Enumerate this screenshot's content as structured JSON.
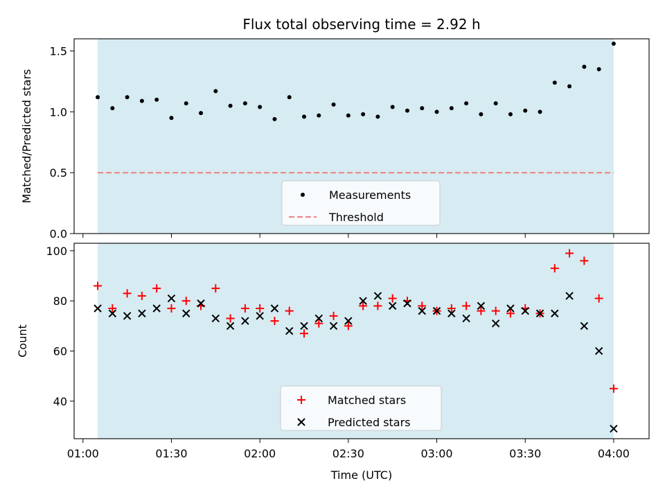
{
  "chart_data": [
    {
      "type": "scatter",
      "title": "Flux total observing time = 2.92 h",
      "ylabel": "Matched/Predicted stars",
      "xlabel": "",
      "ylim": [
        0,
        1.6
      ],
      "yticks": [
        0.0,
        0.5,
        1.0,
        1.5
      ],
      "ytick_labels": [
        "0.0",
        "0.5",
        "1.0",
        "1.5"
      ],
      "shaded_span": [
        "01:05",
        "04:00"
      ],
      "shaded_color": "#add8e6",
      "legend": {
        "location": "lower-center",
        "entries": [
          "Measurements",
          "Threshold"
        ]
      },
      "threshold": {
        "name": "Threshold",
        "value": 0.5,
        "color": "#f08080",
        "style": "dashed"
      },
      "series": [
        {
          "name": "Measurements",
          "color": "#000000",
          "x": [
            "01:05",
            "01:10",
            "01:15",
            "01:20",
            "01:25",
            "01:30",
            "01:35",
            "01:40",
            "01:45",
            "01:50",
            "01:55",
            "02:00",
            "02:05",
            "02:10",
            "02:15",
            "02:20",
            "02:25",
            "02:30",
            "02:35",
            "02:40",
            "02:45",
            "02:50",
            "02:55",
            "03:00",
            "03:05",
            "03:10",
            "03:15",
            "03:20",
            "03:25",
            "03:30",
            "03:35",
            "03:40",
            "03:45",
            "03:50",
            "03:55",
            "04:00"
          ],
          "y": [
            1.12,
            1.03,
            1.12,
            1.09,
            1.1,
            0.95,
            1.07,
            0.99,
            1.17,
            1.05,
            1.07,
            1.04,
            0.94,
            1.12,
            0.96,
            0.97,
            1.06,
            0.97,
            0.98,
            0.96,
            1.04,
            1.01,
            1.03,
            1.0,
            1.03,
            1.07,
            0.98,
            1.07,
            0.98,
            1.01,
            1.0,
            1.24,
            1.21,
            1.37,
            1.35,
            1.56
          ]
        }
      ]
    },
    {
      "type": "scatter",
      "title": "",
      "ylabel": "Count",
      "xlabel": "Time (UTC)",
      "ylim": [
        25,
        103
      ],
      "yticks": [
        40,
        60,
        80,
        100
      ],
      "ytick_labels": [
        "40",
        "60",
        "80",
        "100"
      ],
      "xticks": [
        "01:00",
        "01:30",
        "02:00",
        "02:30",
        "03:00",
        "03:30",
        "04:00"
      ],
      "shaded_span": [
        "01:05",
        "04:00"
      ],
      "shaded_color": "#add8e6",
      "legend": {
        "location": "lower-center",
        "entries": [
          "Matched stars",
          "Predicted stars"
        ]
      },
      "series": [
        {
          "name": "Matched stars",
          "marker": "plus",
          "color": "#ff0000",
          "x": [
            "01:05",
            "01:10",
            "01:15",
            "01:20",
            "01:25",
            "01:30",
            "01:35",
            "01:40",
            "01:45",
            "01:50",
            "01:55",
            "02:00",
            "02:05",
            "02:10",
            "02:15",
            "02:20",
            "02:25",
            "02:30",
            "02:35",
            "02:40",
            "02:45",
            "02:50",
            "02:55",
            "03:00",
            "03:05",
            "03:10",
            "03:15",
            "03:20",
            "03:25",
            "03:30",
            "03:35",
            "03:40",
            "03:45",
            "03:50",
            "03:55",
            "04:00"
          ],
          "y": [
            86,
            77,
            83,
            82,
            85,
            77,
            80,
            78,
            85,
            73,
            77,
            77,
            72,
            76,
            67,
            71,
            74,
            70,
            78,
            78,
            81,
            80,
            78,
            76,
            77,
            78,
            76,
            76,
            75,
            77,
            75,
            93,
            99,
            96,
            81,
            45
          ]
        },
        {
          "name": "Predicted stars",
          "marker": "x",
          "color": "#000000",
          "x": [
            "01:05",
            "01:10",
            "01:15",
            "01:20",
            "01:25",
            "01:30",
            "01:35",
            "01:40",
            "01:45",
            "01:50",
            "01:55",
            "02:00",
            "02:05",
            "02:10",
            "02:15",
            "02:20",
            "02:25",
            "02:30",
            "02:35",
            "02:40",
            "02:45",
            "02:50",
            "02:55",
            "03:00",
            "03:05",
            "03:10",
            "03:15",
            "03:20",
            "03:25",
            "03:30",
            "03:35",
            "03:40",
            "03:45",
            "03:50",
            "03:55",
            "04:00"
          ],
          "y": [
            77,
            75,
            74,
            75,
            77,
            81,
            75,
            79,
            73,
            70,
            72,
            74,
            77,
            68,
            70,
            73,
            70,
            72,
            80,
            82,
            78,
            79,
            76,
            76,
            75,
            73,
            78,
            71,
            77,
            76,
            75,
            75,
            82,
            70,
            60,
            29
          ]
        }
      ]
    }
  ]
}
